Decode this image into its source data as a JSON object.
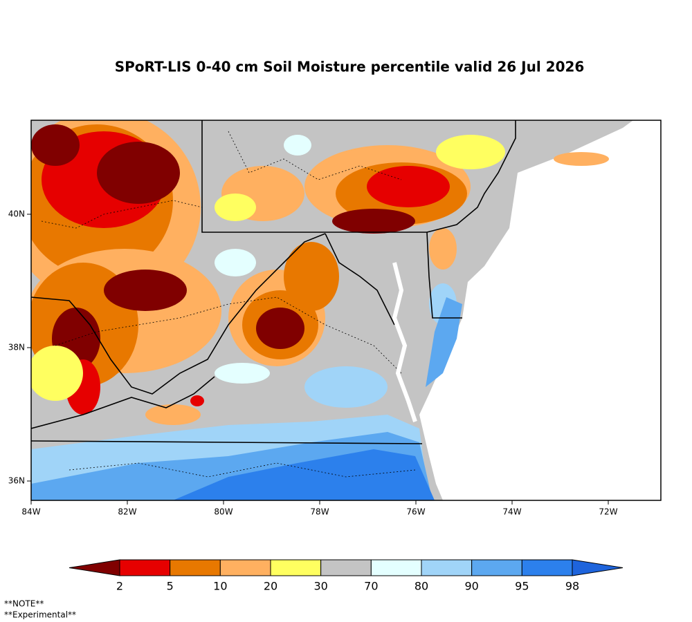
{
  "title": "SPoRT-LIS 0-40 cm Soil Moisture percentile valid 26 Jul 2026",
  "map": {
    "lon_ticks": [
      "84W",
      "82W",
      "80W",
      "78W",
      "76W",
      "74W",
      "72W"
    ],
    "lat_ticks": [
      "36N",
      "38N",
      "40N"
    ]
  },
  "colorbar": {
    "levels": [
      2,
      5,
      10,
      20,
      30,
      70,
      80,
      90,
      95,
      98
    ],
    "colors": [
      "#800000",
      "#e60000",
      "#e87800",
      "#ffb060",
      "#ffff60",
      "#c4c4c4",
      "#e4ffff",
      "#a0d4f8",
      "#5ca8f0",
      "#2c80ec",
      "#1e64dc"
    ]
  },
  "notes": [
    "**NOTE**",
    "**Experimental**"
  ]
}
